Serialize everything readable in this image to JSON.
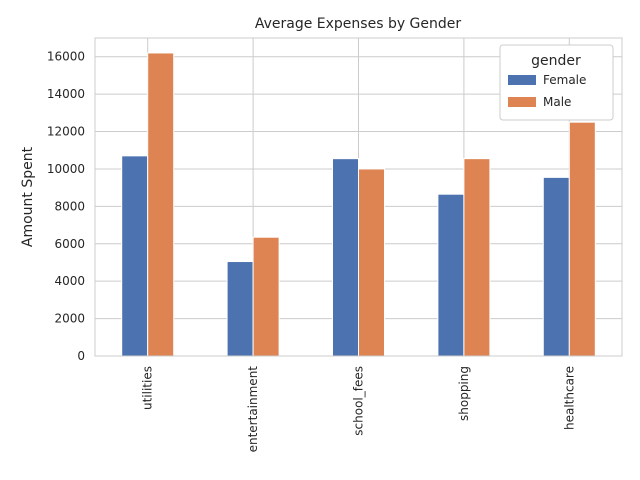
{
  "chart_data": {
    "type": "bar",
    "title": "Average Expenses by Gender",
    "xlabel": "",
    "ylabel": "Amount Spent",
    "categories": [
      "utilities",
      "entertainment",
      "school_fees",
      "shopping",
      "healthcare"
    ],
    "series": [
      {
        "name": "Female",
        "color": "#4c72b0",
        "values": [
          10700,
          5050,
          10550,
          8650,
          9550
        ]
      },
      {
        "name": "Male",
        "color": "#dd8452",
        "values": [
          16200,
          6350,
          10000,
          10550,
          12500
        ]
      }
    ],
    "ylim": [
      0,
      17000
    ],
    "yticks": [
      0,
      2000,
      4000,
      6000,
      8000,
      10000,
      12000,
      14000,
      16000
    ],
    "grid": true,
    "legend": {
      "title": "gender",
      "placement": "top-right"
    }
  }
}
